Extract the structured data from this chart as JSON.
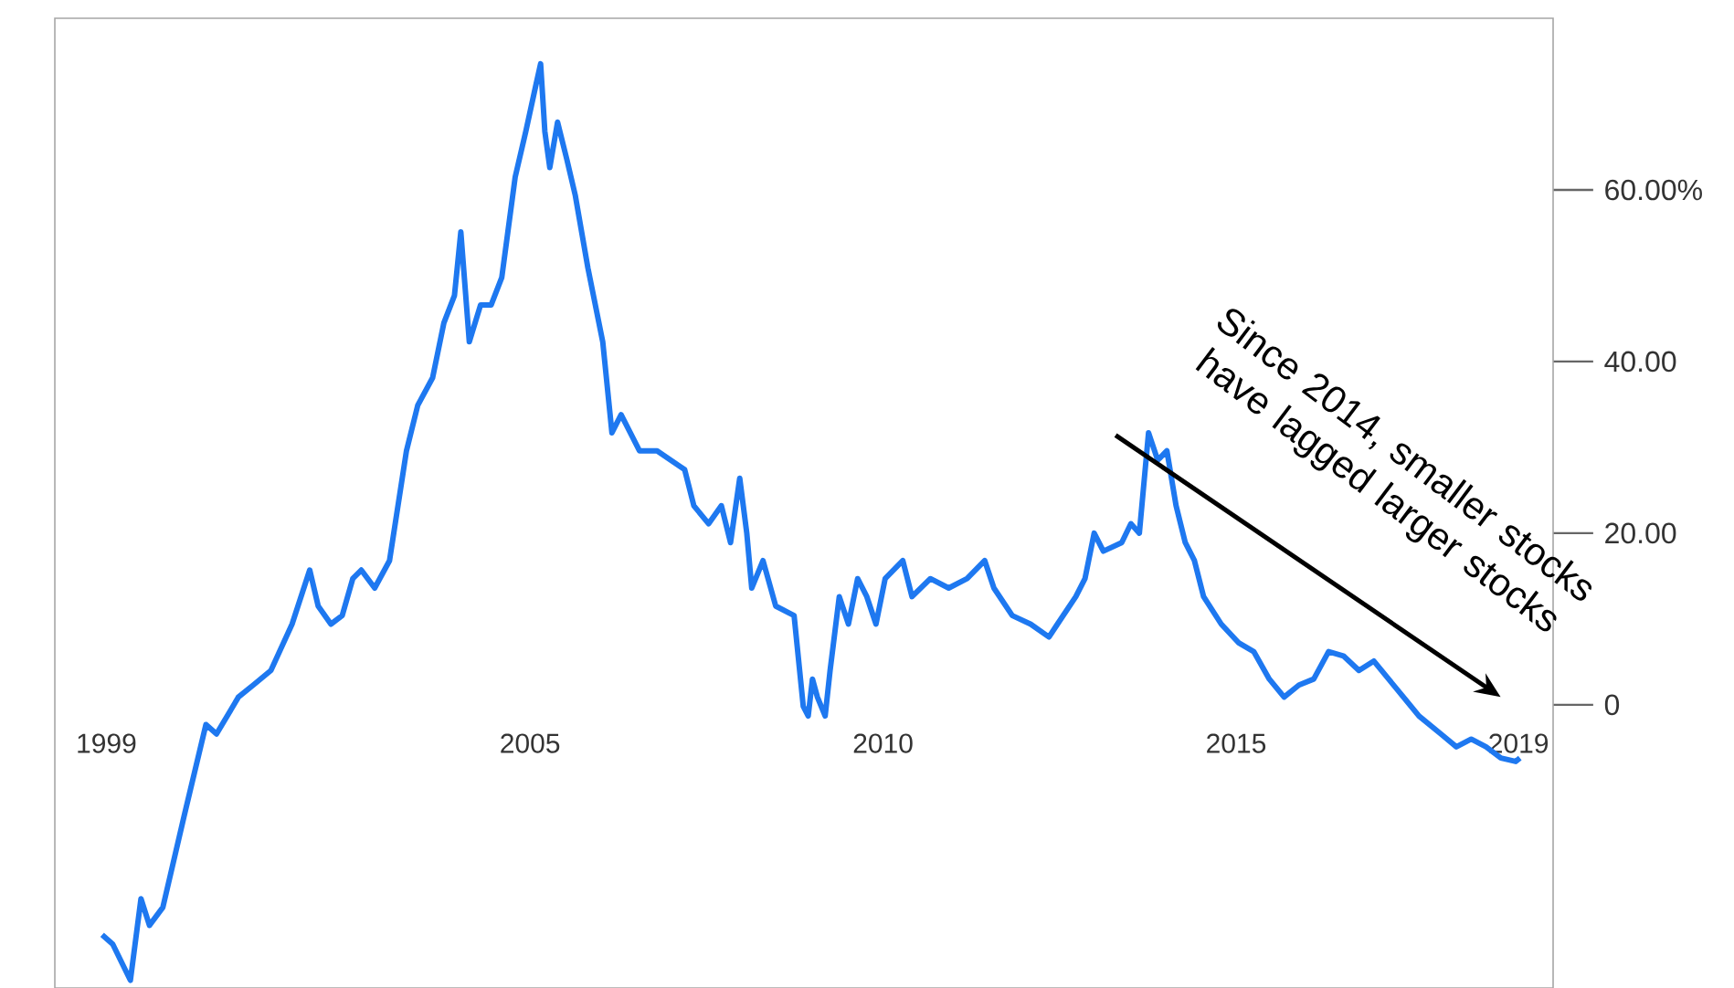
{
  "chart_data": {
    "type": "line",
    "color": "#1e78f0",
    "x": [
      1998.94,
      1999.09,
      1999.34,
      1999.49,
      1999.61,
      1999.8,
      2000.1,
      2000.41,
      2000.56,
      2000.87,
      2001.08,
      2001.33,
      2001.63,
      2001.88,
      2002.0,
      2002.18,
      2002.34,
      2002.49,
      2002.61,
      2002.8,
      2003.01,
      2003.25,
      2003.41,
      2003.62,
      2003.78,
      2003.93,
      2004.02,
      2004.14,
      2004.3,
      2004.45,
      2004.6,
      2004.79,
      2004.94,
      2005.08,
      2005.15,
      2005.21,
      2005.28,
      2005.39,
      2005.52,
      2005.64,
      2005.82,
      2006.03,
      2006.16,
      2006.29,
      2006.55,
      2006.8,
      2007.19,
      2007.32,
      2007.53,
      2007.71,
      2007.84,
      2007.97,
      2008.07,
      2008.14,
      2008.3,
      2008.48,
      2008.74,
      2008.87,
      2008.94,
      2009.0,
      2009.07,
      2009.18,
      2009.25,
      2009.38,
      2009.51,
      2009.64,
      2009.77,
      2009.9,
      2010.03,
      2010.28,
      2010.41,
      2010.67,
      2010.93,
      2011.19,
      2011.44,
      2011.57,
      2011.83,
      2012.09,
      2012.35,
      2012.47,
      2012.73,
      2012.86,
      2012.99,
      2013.12,
      2013.38,
      2013.51,
      2013.63,
      2013.76,
      2013.89,
      2014.02,
      2014.15,
      2014.28,
      2014.41,
      2014.54,
      2014.79,
      2015.04,
      2015.25,
      2015.47,
      2015.68,
      2015.89,
      2016.1,
      2016.31,
      2016.52,
      2016.74,
      2016.95,
      2017.16,
      2017.59,
      2017.9,
      2018.12,
      2018.33,
      2018.54,
      2018.75,
      2018.96,
      2019.02
    ],
    "values": [
      -26.8,
      -27.9,
      -32.1,
      -22.6,
      -25.7,
      -23.6,
      -13.0,
      -2.3,
      -3.4,
      0.9,
      2.3,
      4.0,
      9.4,
      15.7,
      11.5,
      9.4,
      10.4,
      14.7,
      15.7,
      13.6,
      16.8,
      29.6,
      34.9,
      38.1,
      44.5,
      47.7,
      55.1,
      42.3,
      46.6,
      46.6,
      49.8,
      61.5,
      66.8,
      72.1,
      74.7,
      66.8,
      62.6,
      67.9,
      63.6,
      59.4,
      50.9,
      42.3,
      31.7,
      33.8,
      29.6,
      29.6,
      27.4,
      23.2,
      21.1,
      23.2,
      18.9,
      26.4,
      20.0,
      13.6,
      16.8,
      11.5,
      10.4,
      -0.2,
      -1.3,
      3.0,
      0.9,
      -1.3,
      4.0,
      12.6,
      9.4,
      14.7,
      12.6,
      9.4,
      14.7,
      16.8,
      12.6,
      14.7,
      13.6,
      14.7,
      16.8,
      13.6,
      10.4,
      9.4,
      7.9,
      9.4,
      12.6,
      14.7,
      20.0,
      17.9,
      18.9,
      21.1,
      20.0,
      31.7,
      28.5,
      29.6,
      23.2,
      18.9,
      16.8,
      12.6,
      9.4,
      7.2,
      6.2,
      3.0,
      0.9,
      2.3,
      3.0,
      6.2,
      5.7,
      4.0,
      5.1,
      3.0,
      -1.3,
      -3.4,
      -4.9,
      -4.0,
      -4.9,
      -6.2,
      -6.6,
      -6.2
    ],
    "xlim": [
      1998.27,
      2019.49
    ],
    "ylim": [
      -33,
      80
    ],
    "xticks": [
      1999,
      2005,
      2010,
      2015,
      2019
    ],
    "yticks": [
      0,
      {
        "value": 20,
        "label": "20.00"
      },
      {
        "value": 40,
        "label": "40.00"
      },
      {
        "value": 60,
        "label": "60.00%"
      }
    ],
    "grid": false,
    "marker": "none",
    "line_style": "solid",
    "annotations": [
      "Since 2014, smaller stocks have lagged larger stocks"
    ]
  }
}
